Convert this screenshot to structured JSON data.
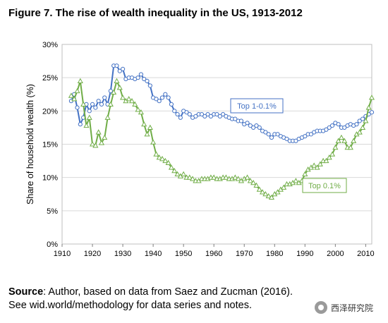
{
  "figure": {
    "title": "Figure 7. The rise of wealth inequality in the US, 1913-2012",
    "source_label": "Source",
    "source_text": ": Author, based on data from Saez and Zucman (2016). See wid.world/methodology for data series and notes.",
    "watermark": "西泽研究院"
  },
  "chart_data": {
    "type": "line",
    "ylabel": "Share of household wealth (%)",
    "xlim": [
      1910,
      2012
    ],
    "ylim": [
      0,
      30
    ],
    "x_ticks": [
      1910,
      1920,
      1930,
      1940,
      1950,
      1960,
      1970,
      1980,
      1990,
      2000,
      2010
    ],
    "y_ticks": [
      0,
      5,
      10,
      15,
      20,
      25,
      30
    ],
    "y_tick_labels": [
      "0%",
      "5%",
      "10%",
      "15%",
      "20%",
      "25%",
      "30%"
    ],
    "grid": "horizontal",
    "series": [
      {
        "name": "Top 1-0.1%",
        "color": "#4472c4",
        "marker": "circle",
        "x": [
          1913,
          1914,
          1915,
          1916,
          1917,
          1918,
          1919,
          1920,
          1921,
          1922,
          1923,
          1924,
          1925,
          1926,
          1927,
          1928,
          1929,
          1930,
          1931,
          1932,
          1933,
          1934,
          1935,
          1936,
          1937,
          1938,
          1939,
          1940,
          1941,
          1942,
          1943,
          1944,
          1945,
          1946,
          1947,
          1948,
          1949,
          1950,
          1951,
          1952,
          1953,
          1954,
          1955,
          1956,
          1957,
          1958,
          1959,
          1960,
          1961,
          1962,
          1963,
          1964,
          1965,
          1966,
          1967,
          1968,
          1969,
          1970,
          1971,
          1972,
          1973,
          1974,
          1975,
          1976,
          1977,
          1978,
          1979,
          1980,
          1981,
          1982,
          1983,
          1984,
          1985,
          1986,
          1987,
          1988,
          1989,
          1990,
          1991,
          1992,
          1993,
          1994,
          1995,
          1996,
          1997,
          1998,
          1999,
          2000,
          2001,
          2002,
          2003,
          2004,
          2005,
          2006,
          2007,
          2008,
          2009,
          2010,
          2011,
          2012
        ],
        "y": [
          21.5,
          22.5,
          20.5,
          18,
          19,
          21,
          20,
          21,
          20.5,
          21.5,
          21,
          22,
          21,
          23,
          26.8,
          26.8,
          26,
          26.3,
          24.8,
          25,
          25,
          24.8,
          25,
          25.5,
          24.8,
          24.5,
          23.8,
          22,
          21.8,
          21.5,
          22,
          22.5,
          22,
          21,
          20,
          19.5,
          19,
          20,
          19.8,
          19.5,
          19,
          19.2,
          19.5,
          19.5,
          19.2,
          19.5,
          19.2,
          19.5,
          19.5,
          19.2,
          19.5,
          19.2,
          19,
          18.8,
          18.8,
          18.5,
          18.5,
          18,
          18.2,
          17.8,
          17.5,
          17.8,
          17.5,
          17,
          16.8,
          16.5,
          16,
          16.5,
          16.5,
          16.2,
          16,
          15.8,
          15.5,
          15.5,
          15.5,
          15.8,
          16,
          16.2,
          16.5,
          16.5,
          16.8,
          17,
          17,
          17,
          17.2,
          17.5,
          17.8,
          18.2,
          18,
          17.5,
          17.5,
          17.8,
          18,
          17.8,
          18,
          18.5,
          18.8,
          19.2,
          19.5,
          19.8
        ]
      },
      {
        "name": "Top 0.1%",
        "color": "#70ad47",
        "marker": "triangle",
        "x": [
          1913,
          1914,
          1915,
          1916,
          1917,
          1918,
          1919,
          1920,
          1921,
          1922,
          1923,
          1924,
          1925,
          1926,
          1927,
          1928,
          1929,
          1930,
          1931,
          1932,
          1933,
          1934,
          1935,
          1936,
          1937,
          1938,
          1939,
          1940,
          1941,
          1942,
          1943,
          1944,
          1945,
          1946,
          1947,
          1948,
          1949,
          1950,
          1951,
          1952,
          1953,
          1954,
          1955,
          1956,
          1957,
          1958,
          1959,
          1960,
          1961,
          1962,
          1963,
          1964,
          1965,
          1966,
          1967,
          1968,
          1969,
          1970,
          1971,
          1972,
          1973,
          1974,
          1975,
          1976,
          1977,
          1978,
          1979,
          1980,
          1981,
          1982,
          1983,
          1984,
          1985,
          1986,
          1987,
          1988,
          1989,
          1990,
          1991,
          1992,
          1993,
          1994,
          1995,
          1996,
          1997,
          1998,
          1999,
          2000,
          2001,
          2002,
          2003,
          2004,
          2005,
          2006,
          2007,
          2008,
          2009,
          2010,
          2011,
          2012
        ],
        "y": [
          22.3,
          21.8,
          23,
          24.5,
          21,
          17.8,
          19,
          15,
          14.8,
          16.8,
          15.2,
          16,
          19,
          21,
          22.8,
          24.5,
          23.5,
          22,
          21.5,
          21.8,
          21.5,
          21,
          20.2,
          19.8,
          18,
          16.5,
          17.5,
          15.3,
          13.5,
          13,
          12.8,
          12.5,
          12.2,
          11.5,
          11,
          10.5,
          10.2,
          10.5,
          10,
          10,
          9.8,
          9.5,
          9.5,
          9.8,
          9.8,
          9.8,
          10,
          10,
          9.8,
          9.8,
          10,
          10,
          9.8,
          9.8,
          10,
          9.8,
          9.5,
          9.8,
          10,
          9.5,
          9.2,
          8.8,
          8.2,
          7.8,
          7.5,
          7.2,
          7,
          7.5,
          7.8,
          8.2,
          8.5,
          9,
          9,
          9.2,
          9.5,
          9.2,
          9.5,
          10.5,
          11.2,
          11.5,
          11.8,
          11.5,
          12,
          12.5,
          12.5,
          13,
          13.5,
          14.5,
          15.5,
          16,
          15.5,
          14.5,
          14.5,
          15.5,
          16.5,
          16.8,
          17.5,
          18.5,
          20.5,
          22
        ]
      }
    ],
    "annotations": [
      {
        "text": "Top 1-0.1%",
        "series": 0
      },
      {
        "text": "Top 0.1%",
        "series": 1
      }
    ]
  }
}
